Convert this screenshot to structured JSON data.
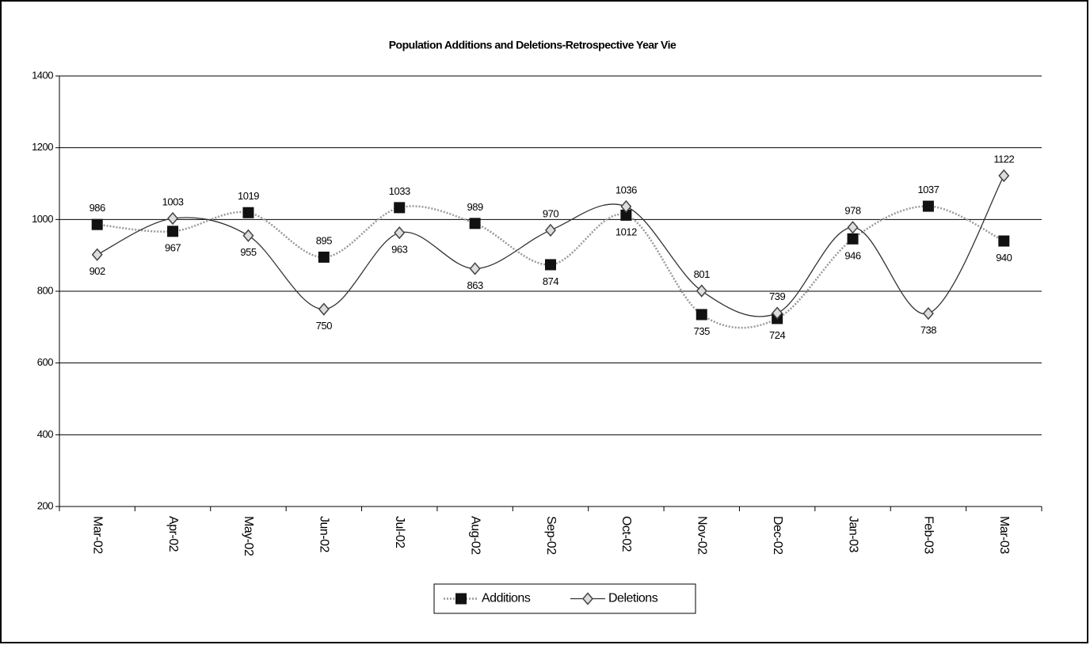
{
  "chart_data": {
    "type": "line",
    "title": "Population Additions and Deletions-Retrospective Year Vie",
    "categories": [
      "Mar-02",
      "Apr-02",
      "May-02",
      "Jun-02",
      "Jul-02",
      "Aug-02",
      "Sep-02",
      "Oct-02",
      "Nov-02",
      "Dec-02",
      "Jan-03",
      "Feb-03",
      "Mar-03"
    ],
    "series": [
      {
        "name": "Additions",
        "color": "#999999",
        "marker": "square",
        "values": [
          986,
          967,
          1019,
          895,
          1033,
          989,
          874,
          1012,
          735,
          724,
          946,
          1037,
          940
        ]
      },
      {
        "name": "Deletions",
        "color": "#333333",
        "marker": "diamond",
        "values": [
          902,
          1003,
          955,
          750,
          963,
          863,
          970,
          1036,
          801,
          739,
          978,
          738,
          1122
        ]
      }
    ],
    "ylim": [
      200,
      1400
    ],
    "yticks": [
      200,
      400,
      600,
      800,
      1000,
      1200,
      1400
    ],
    "grid": true,
    "legend": "bottom"
  }
}
